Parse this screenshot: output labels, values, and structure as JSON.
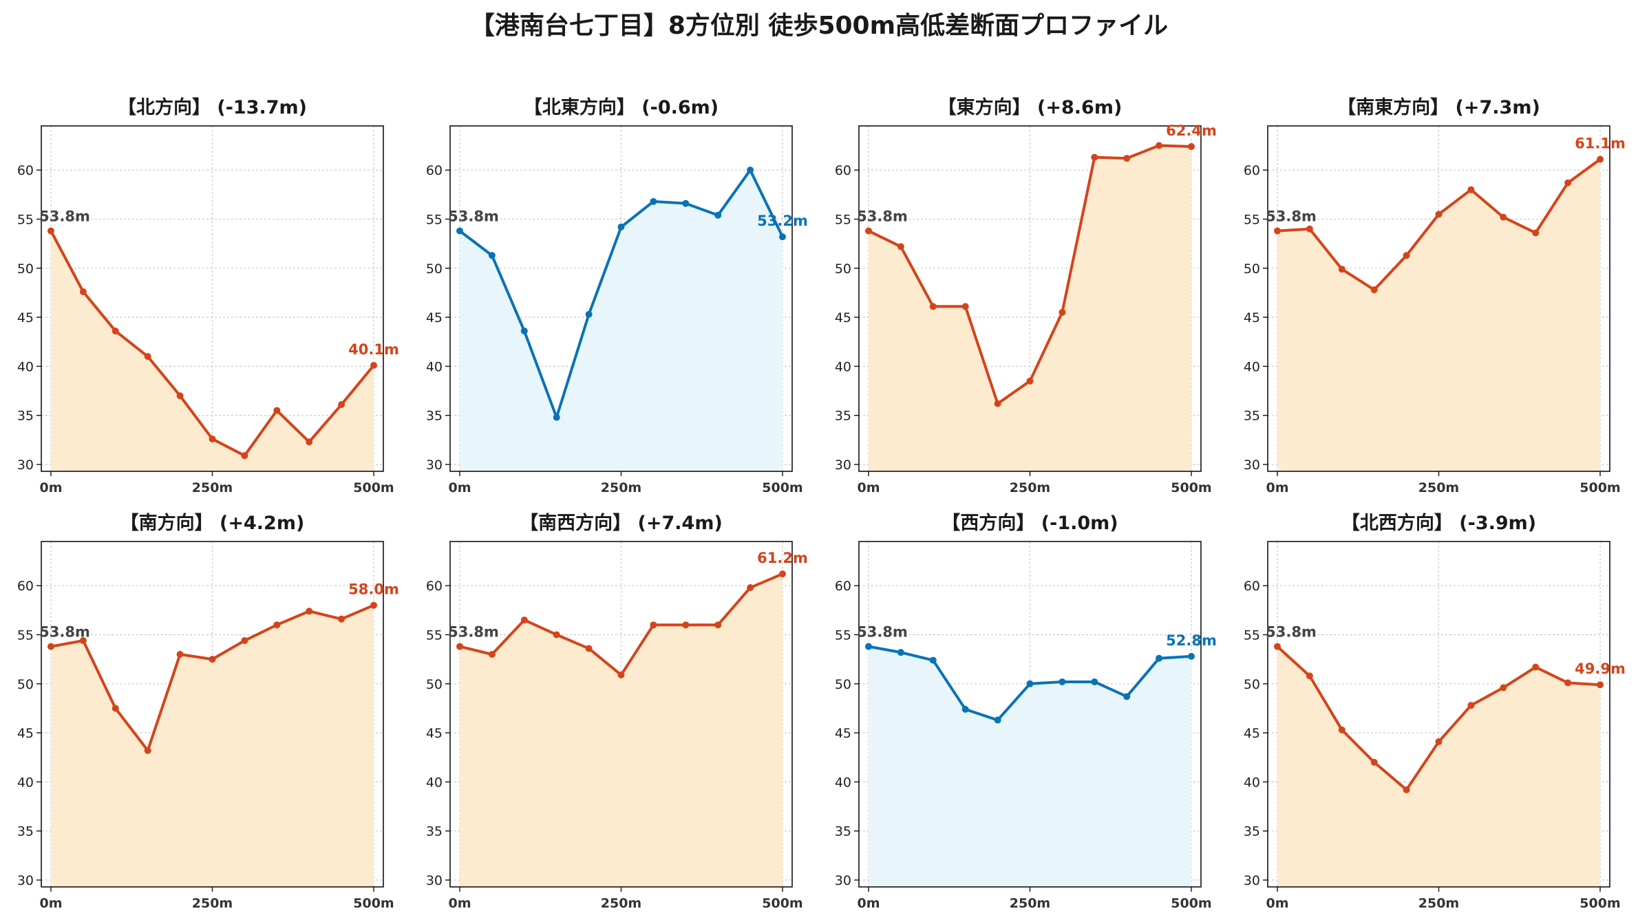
{
  "title": "【港南台七丁目】8方位別 徒歩500m高低差断面プロファイル",
  "colors": {
    "up_line": "#d4441a",
    "up_fill": "#fdebd0",
    "down_line": "#0a72b5",
    "down_fill": "#e8f6fb",
    "start_label": "#444444",
    "grid": "#c8c8c8"
  },
  "chart_data": [
    {
      "type": "line",
      "title": "【北方向】 (-13.7m)",
      "trend": "up_fill",
      "x": [
        0,
        50,
        100,
        150,
        200,
        250,
        300,
        350,
        400,
        450,
        500
      ],
      "values": [
        53.8,
        47.6,
        43.6,
        41.0,
        37.0,
        32.6,
        30.9,
        35.5,
        32.3,
        36.1,
        40.1
      ],
      "xticks": [
        "0m",
        "250m",
        "500m"
      ],
      "ylim": [
        30,
        65
      ],
      "yticks": [
        30,
        35,
        40,
        45,
        50,
        55,
        60
      ],
      "start_label": "53.8m",
      "end_label": "40.1m",
      "grid": true
    },
    {
      "type": "line",
      "title": "【北東方向】 (-0.6m)",
      "trend": "down",
      "x": [
        0,
        50,
        100,
        150,
        200,
        250,
        300,
        350,
        400,
        450,
        500
      ],
      "values": [
        53.8,
        51.3,
        43.6,
        34.8,
        45.3,
        54.2,
        56.8,
        56.6,
        55.4,
        60.0,
        53.2
      ],
      "xticks": [
        "0m",
        "250m",
        "500m"
      ],
      "ylim": [
        30,
        65
      ],
      "yticks": [
        30,
        35,
        40,
        45,
        50,
        55,
        60
      ],
      "start_label": "53.8m",
      "end_label": "53.2m",
      "grid": true
    },
    {
      "type": "line",
      "title": "【東方向】 (+8.6m)",
      "trend": "up",
      "x": [
        0,
        50,
        100,
        150,
        200,
        250,
        300,
        350,
        400,
        450,
        500
      ],
      "values": [
        53.8,
        52.2,
        46.1,
        46.1,
        36.2,
        38.5,
        45.5,
        61.3,
        61.2,
        62.5,
        62.4
      ],
      "xticks": [
        "0m",
        "250m",
        "500m"
      ],
      "ylim": [
        30,
        65
      ],
      "yticks": [
        30,
        35,
        40,
        45,
        50,
        55,
        60
      ],
      "start_label": "53.8m",
      "end_label": "62.4m",
      "grid": true
    },
    {
      "type": "line",
      "title": "【南東方向】 (+7.3m)",
      "trend": "up",
      "x": [
        0,
        50,
        100,
        150,
        200,
        250,
        300,
        350,
        400,
        450,
        500
      ],
      "values": [
        53.8,
        54.0,
        49.9,
        47.8,
        51.3,
        55.5,
        58.0,
        55.2,
        53.6,
        58.7,
        61.1
      ],
      "xticks": [
        "0m",
        "250m",
        "500m"
      ],
      "ylim": [
        30,
        65
      ],
      "yticks": [
        30,
        35,
        40,
        45,
        50,
        55,
        60
      ],
      "start_label": "53.8m",
      "end_label": "61.1m",
      "grid": true
    },
    {
      "type": "line",
      "title": "【南方向】 (+4.2m)",
      "trend": "up",
      "x": [
        0,
        50,
        100,
        150,
        200,
        250,
        300,
        350,
        400,
        450,
        500
      ],
      "values": [
        53.8,
        54.4,
        47.5,
        43.2,
        53.0,
        52.5,
        54.4,
        56.0,
        57.4,
        56.6,
        58.0
      ],
      "xticks": [
        "0m",
        "250m",
        "500m"
      ],
      "ylim": [
        30,
        65
      ],
      "yticks": [
        30,
        35,
        40,
        45,
        50,
        55,
        60
      ],
      "start_label": "53.8m",
      "end_label": "58.0m",
      "grid": true
    },
    {
      "type": "line",
      "title": "【南西方向】 (+7.4m)",
      "trend": "up",
      "x": [
        0,
        50,
        100,
        150,
        200,
        250,
        300,
        350,
        400,
        450,
        500
      ],
      "values": [
        53.8,
        53.0,
        56.5,
        55.0,
        53.6,
        50.9,
        56.0,
        56.0,
        56.0,
        59.8,
        61.2
      ],
      "xticks": [
        "0m",
        "250m",
        "500m"
      ],
      "ylim": [
        30,
        65
      ],
      "yticks": [
        30,
        35,
        40,
        45,
        50,
        55,
        60
      ],
      "start_label": "53.8m",
      "end_label": "61.2m",
      "grid": true
    },
    {
      "type": "line",
      "title": "【西方向】 (-1.0m)",
      "trend": "down",
      "x": [
        0,
        50,
        100,
        150,
        200,
        250,
        300,
        350,
        400,
        450,
        500
      ],
      "values": [
        53.8,
        53.2,
        52.4,
        47.4,
        46.3,
        50.0,
        50.2,
        50.2,
        48.7,
        52.6,
        52.8
      ],
      "xticks": [
        "0m",
        "250m",
        "500m"
      ],
      "ylim": [
        30,
        65
      ],
      "yticks": [
        30,
        35,
        40,
        45,
        50,
        55,
        60
      ],
      "start_label": "53.8m",
      "end_label": "52.8m",
      "grid": true
    },
    {
      "type": "line",
      "title": "【北西方向】 (-3.9m)",
      "trend": "up_fill",
      "x": [
        0,
        50,
        100,
        150,
        200,
        250,
        300,
        350,
        400,
        450,
        500
      ],
      "values": [
        53.8,
        50.8,
        45.3,
        42.0,
        39.2,
        44.1,
        47.8,
        49.6,
        51.7,
        50.1,
        49.9
      ],
      "xticks": [
        "0m",
        "250m",
        "500m"
      ],
      "ylim": [
        30,
        65
      ],
      "yticks": [
        30,
        35,
        40,
        45,
        50,
        55,
        60
      ],
      "start_label": "53.8m",
      "end_label": "49.9m",
      "grid": true
    }
  ]
}
